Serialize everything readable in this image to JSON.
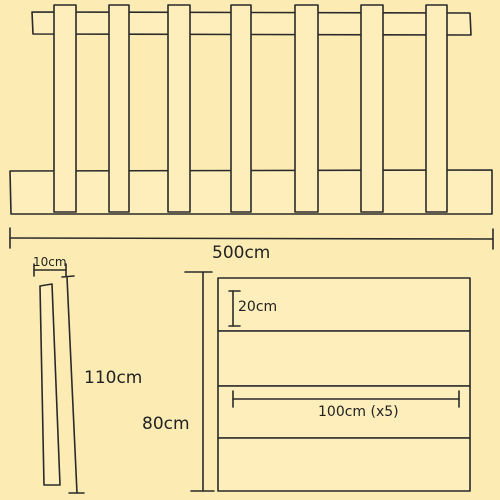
{
  "colors": {
    "background": "#fcecb4",
    "wood": "#fdeebb",
    "ink": "#2a2a2a"
  },
  "labels": {
    "total_width": "500cm",
    "picket_width": "10cm",
    "picket_height": "110cm",
    "panel_height": "80cm",
    "board_height": "20cm",
    "board_length": "100cm (x5)"
  }
}
